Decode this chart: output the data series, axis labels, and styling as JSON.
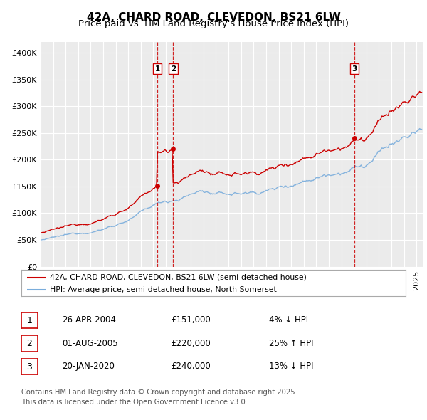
{
  "title": "42A, CHARD ROAD, CLEVEDON, BS21 6LW",
  "subtitle": "Price paid vs. HM Land Registry's House Price Index (HPI)",
  "legend_line1": "42A, CHARD ROAD, CLEVEDON, BS21 6LW (semi-detached house)",
  "legend_line2": "HPI: Average price, semi-detached house, North Somerset",
  "ylabel_ticks": [
    "£0",
    "£50K",
    "£100K",
    "£150K",
    "£200K",
    "£250K",
    "£300K",
    "£350K",
    "£400K"
  ],
  "ytick_values": [
    0,
    50000,
    100000,
    150000,
    200000,
    250000,
    300000,
    350000,
    400000
  ],
  "ylim": [
    0,
    420000
  ],
  "xlim_start": 1995.0,
  "xlim_end": 2025.5,
  "sale_color": "#cc0000",
  "hpi_color": "#7aaddc",
  "vline_color": "#cc0000",
  "background_color": "#ebebeb",
  "grid_color": "#ffffff",
  "transactions": [
    {
      "date_num": 2004.32,
      "price": 151000,
      "label": "1"
    },
    {
      "date_num": 2005.58,
      "price": 220000,
      "label": "2"
    },
    {
      "date_num": 2020.05,
      "price": 240000,
      "label": "3"
    }
  ],
  "table_rows": [
    {
      "num": "1",
      "date": "26-APR-2004",
      "price": "£151,000",
      "hpi": "4% ↓ HPI"
    },
    {
      "num": "2",
      "date": "01-AUG-2005",
      "price": "£220,000",
      "hpi": "25% ↑ HPI"
    },
    {
      "num": "3",
      "date": "20-JAN-2020",
      "price": "£240,000",
      "hpi": "13% ↓ HPI"
    }
  ],
  "footer": "Contains HM Land Registry data © Crown copyright and database right 2025.\nThis data is licensed under the Open Government Licence v3.0.",
  "title_fontsize": 11,
  "subtitle_fontsize": 9.5,
  "axis_fontsize": 8
}
